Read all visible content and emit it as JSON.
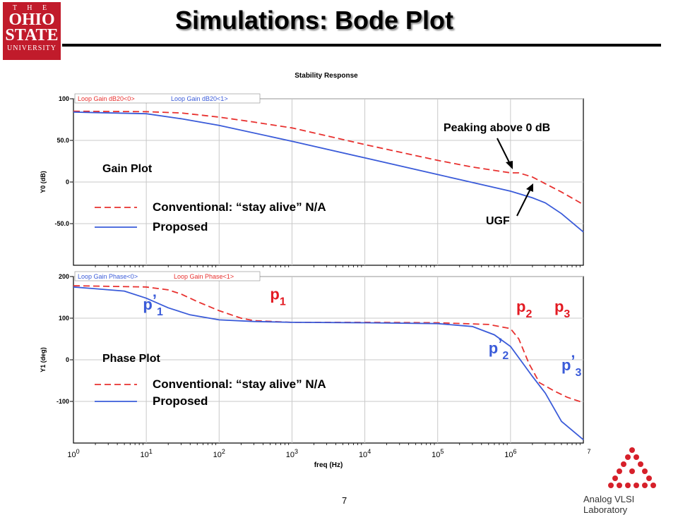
{
  "header": {
    "title": "Simulations: Bode Plot"
  },
  "logo": {
    "line1": "T H E",
    "line2": "OHIO",
    "line3": "STATE",
    "line4": "UNIVERSITY"
  },
  "footer": {
    "page_number": "7",
    "lab_name": "Analog VLSI Laboratory"
  },
  "colors": {
    "conventional": "#e8312f",
    "proposed": "#3a5bd9",
    "accent_red": "#e31b23"
  },
  "chart_data": [
    {
      "type": "line",
      "title": "Stability Response",
      "ylabel": "Y0 (dB)",
      "xscale": "log",
      "xlim": [
        1,
        10000000
      ],
      "ylim": [
        -100,
        100
      ],
      "grid": true,
      "yticks": [
        "100",
        "50.0",
        "0",
        "-50.0"
      ],
      "legend_tabs": [
        "Loop Gain dB20<0>",
        "Loop Gain dB20<1>"
      ],
      "inner_title": "Gain Plot",
      "legend": {
        "position": "left",
        "entries": [
          "Conventional: “stay alive” N/A",
          "Proposed"
        ]
      },
      "annotations": [
        "Peaking above 0 dB",
        "UGF"
      ],
      "series": [
        {
          "name": "Conventional: “stay alive” N/A",
          "style": "dashed",
          "x": [
            1,
            10,
            30,
            100,
            300,
            1000,
            10000,
            100000,
            300000,
            1000000,
            1300000,
            2000000,
            3000000,
            5000000,
            10000000
          ],
          "y": [
            85,
            84.5,
            83,
            78,
            72,
            65,
            45,
            26,
            18,
            11,
            11,
            6,
            -2,
            -12,
            -27
          ]
        },
        {
          "name": "Proposed",
          "style": "solid",
          "x": [
            1,
            10,
            30,
            100,
            1000,
            10000,
            100000,
            1000000,
            2000000,
            3000000,
            5000000,
            10000000
          ],
          "y": [
            84,
            82,
            76,
            68,
            49,
            29,
            9,
            -11,
            -19,
            -25,
            -38,
            -60
          ]
        }
      ]
    },
    {
      "type": "line",
      "xlabel": "freq (Hz)",
      "ylabel": "Y1 (deg)",
      "xscale": "log",
      "xlim": [
        1,
        10000000
      ],
      "ylim": [
        -200,
        200
      ],
      "grid": true,
      "yticks": [
        "200",
        "100",
        "0",
        "-100"
      ],
      "legend_tabs": [
        "Loop Gain Phase<0>",
        "Loop Gain Phase<1>"
      ],
      "inner_title": "Phase Plot",
      "legend": {
        "position": "left",
        "entries": [
          "Conventional: “stay alive” N/A",
          "Proposed"
        ]
      },
      "pole_labels": [
        {
          "base": "p",
          "sub": "1",
          "prime": "’",
          "color": "proposed",
          "x": 9,
          "y": 120
        },
        {
          "base": "p",
          "sub": "1",
          "prime": "",
          "color": "conventional",
          "x": 500,
          "y": 145
        },
        {
          "base": "p",
          "sub": "2",
          "prime": "",
          "color": "conventional",
          "x": 1200000,
          "y": 115
        },
        {
          "base": "p",
          "sub": "3",
          "prime": "",
          "color": "conventional",
          "x": 4000000,
          "y": 115
        },
        {
          "base": "p",
          "sub": "2",
          "prime": "’",
          "color": "proposed",
          "x": 500000,
          "y": 15
        },
        {
          "base": "p",
          "sub": "3",
          "prime": "’",
          "color": "proposed",
          "x": 5000000,
          "y": -25
        }
      ],
      "xtick_labels": [
        {
          "base": "10",
          "exp": "0"
        },
        {
          "base": "10",
          "exp": "1"
        },
        {
          "base": "10",
          "exp": "2"
        },
        {
          "base": "10",
          "exp": "3"
        },
        {
          "base": "10",
          "exp": "4"
        },
        {
          "base": "10",
          "exp": "5"
        },
        {
          "base": "10",
          "exp": "6"
        },
        {
          "base": "",
          "exp": "7"
        }
      ],
      "series": [
        {
          "name": "Conventional: “stay alive” N/A",
          "style": "dashed",
          "x": [
            1,
            10,
            20,
            30,
            50,
            100,
            200,
            300,
            1000,
            10000,
            100000,
            500000,
            1000000,
            1300000,
            1800000,
            2500000,
            4000000,
            6000000,
            10000000
          ],
          "y": [
            178,
            175,
            168,
            158,
            140,
            118,
            100,
            94,
            90,
            90,
            89,
            85,
            75,
            50,
            -10,
            -55,
            -75,
            -90,
            -103
          ]
        },
        {
          "name": "Proposed",
          "style": "solid",
          "x": [
            1,
            5,
            10,
            20,
            40,
            100,
            300,
            1000,
            10000,
            100000,
            300000,
            600000,
            1000000,
            1500000,
            2000000,
            3000000,
            5000000,
            10000000
          ],
          "y": [
            175,
            165,
            148,
            125,
            108,
            96,
            92,
            90,
            89,
            87,
            80,
            60,
            32,
            -10,
            -40,
            -80,
            -148,
            -192
          ]
        }
      ]
    }
  ]
}
